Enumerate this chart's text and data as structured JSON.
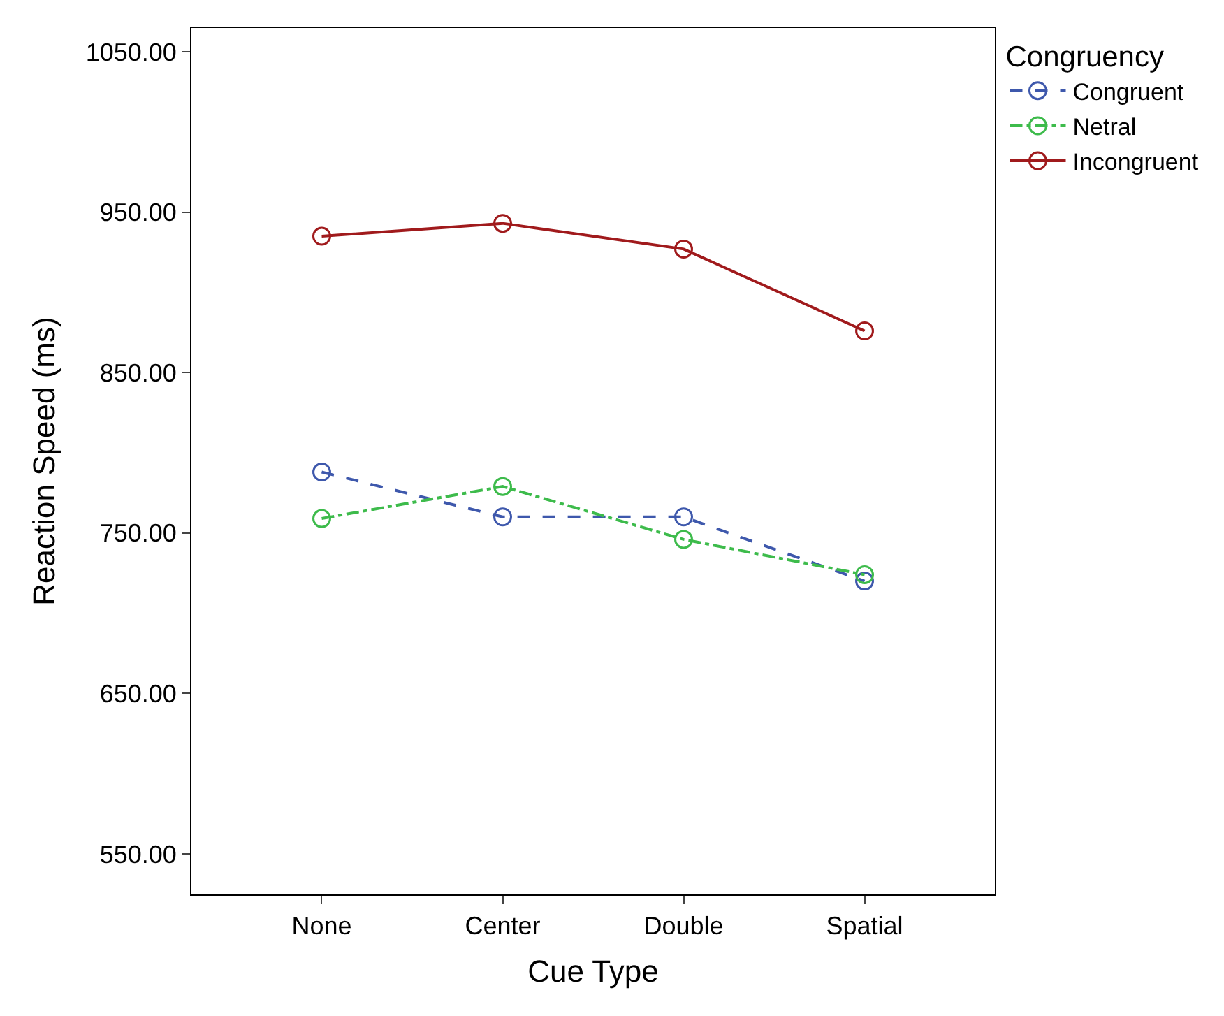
{
  "chart_data": {
    "type": "line",
    "xlabel": "Cue Type",
    "ylabel": "Reaction Speed (ms)",
    "legend_title": "Congruency",
    "categories": [
      "None",
      "Center",
      "Double",
      "Spatial"
    ],
    "series": [
      {
        "name": "Congruent",
        "color": "#3e58ac",
        "line_style": "dashed",
        "values": [
          788,
          760,
          760,
          720
        ]
      },
      {
        "name": "Netral",
        "color": "#3dbb4b",
        "line_style": "dashdot",
        "values": [
          759,
          779,
          746,
          724
        ]
      },
      {
        "name": "Incongruent",
        "color": "#a01a1c",
        "line_style": "solid",
        "values": [
          935,
          943,
          927,
          876
        ]
      }
    ],
    "ylim": [
      524.7,
      1064.8
    ],
    "yticks": [
      {
        "value": 550,
        "label": "550.00"
      },
      {
        "value": 650,
        "label": "650.00"
      },
      {
        "value": 750,
        "label": "750.00"
      },
      {
        "value": 850,
        "label": "850.00"
      },
      {
        "value": 950,
        "label": "950.00"
      },
      {
        "value": 1050,
        "label": "1050.00"
      }
    ],
    "legend": "top right",
    "marker": "circle"
  }
}
